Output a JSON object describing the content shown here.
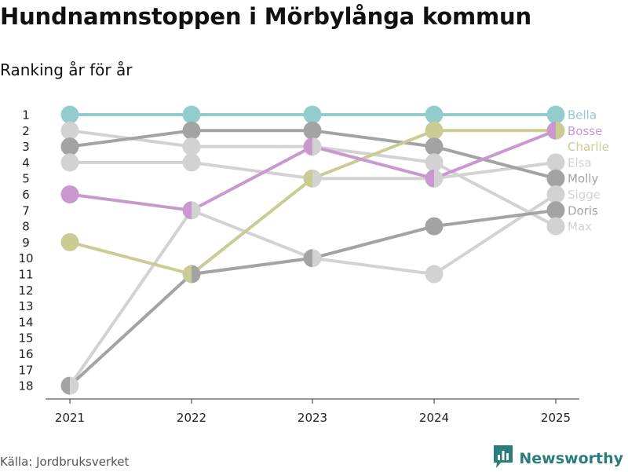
{
  "header": {
    "title": "Hundnamnstoppen i Mörbylånga kommun",
    "subtitle": "Ranking år för år"
  },
  "footer": {
    "source": "Källa: Jordbruksverket",
    "brand": "Newsworthy",
    "brand_icon": "newsworthy-logo-icon",
    "brand_color": "#2a7d7d"
  },
  "chart_data": {
    "type": "line",
    "subtype": "bump",
    "title": "Hundnamnstoppen i Mörbylånga kommun",
    "subtitle": "Ranking år för år",
    "x": [
      "2021",
      "2022",
      "2023",
      "2024",
      "2025"
    ],
    "yticks": [
      "1",
      "2",
      "3",
      "4",
      "5",
      "6",
      "7",
      "8",
      "9",
      "10",
      "11",
      "12",
      "13",
      "14",
      "15",
      "16",
      "17",
      "18"
    ],
    "ylim": [
      18,
      1
    ],
    "y_inverted": true,
    "grid": false,
    "series": [
      {
        "name": "Sigge",
        "color": "#d2d2d2",
        "values": [
          18,
          7,
          10,
          11,
          6
        ]
      },
      {
        "name": "Max",
        "color": "#d2d2d2",
        "values": [
          2,
          3,
          3,
          4,
          8
        ]
      },
      {
        "name": "Elsa",
        "color": "#d2d2d2",
        "values": [
          4,
          4,
          5,
          5,
          4
        ]
      },
      {
        "name": "Doris",
        "color": "#a3a3a3",
        "values": [
          18,
          11,
          10,
          8,
          7
        ]
      },
      {
        "name": "Molly",
        "color": "#a3a3a3",
        "values": [
          3,
          2,
          2,
          3,
          5
        ]
      },
      {
        "name": "Charlie",
        "color": "#cbcb94",
        "values": [
          9,
          11,
          5,
          2,
          2
        ]
      },
      {
        "name": "Bosse",
        "color": "#c998cf",
        "values": [
          6,
          7,
          3,
          5,
          2
        ]
      },
      {
        "name": "Bella",
        "color": "#93cccc",
        "values": [
          1,
          1,
          1,
          1,
          1
        ]
      }
    ],
    "labels": [
      {
        "name": "Bella",
        "color": "#93cccc",
        "rank_pos": 1
      },
      {
        "name": "Bosse",
        "color": "#c998cf",
        "rank_pos": 2
      },
      {
        "name": "Charlie",
        "color": "#cbcb94",
        "rank_pos": 3
      },
      {
        "name": "Elsa",
        "color": "#d2d2d2",
        "rank_pos": 4
      },
      {
        "name": "Molly",
        "color": "#a3a3a3",
        "rank_pos": 5
      },
      {
        "name": "Sigge",
        "color": "#d2d2d2",
        "rank_pos": 6
      },
      {
        "name": "Doris",
        "color": "#a3a3a3",
        "rank_pos": 7
      },
      {
        "name": "Max",
        "color": "#d2d2d2",
        "rank_pos": 8
      }
    ]
  }
}
